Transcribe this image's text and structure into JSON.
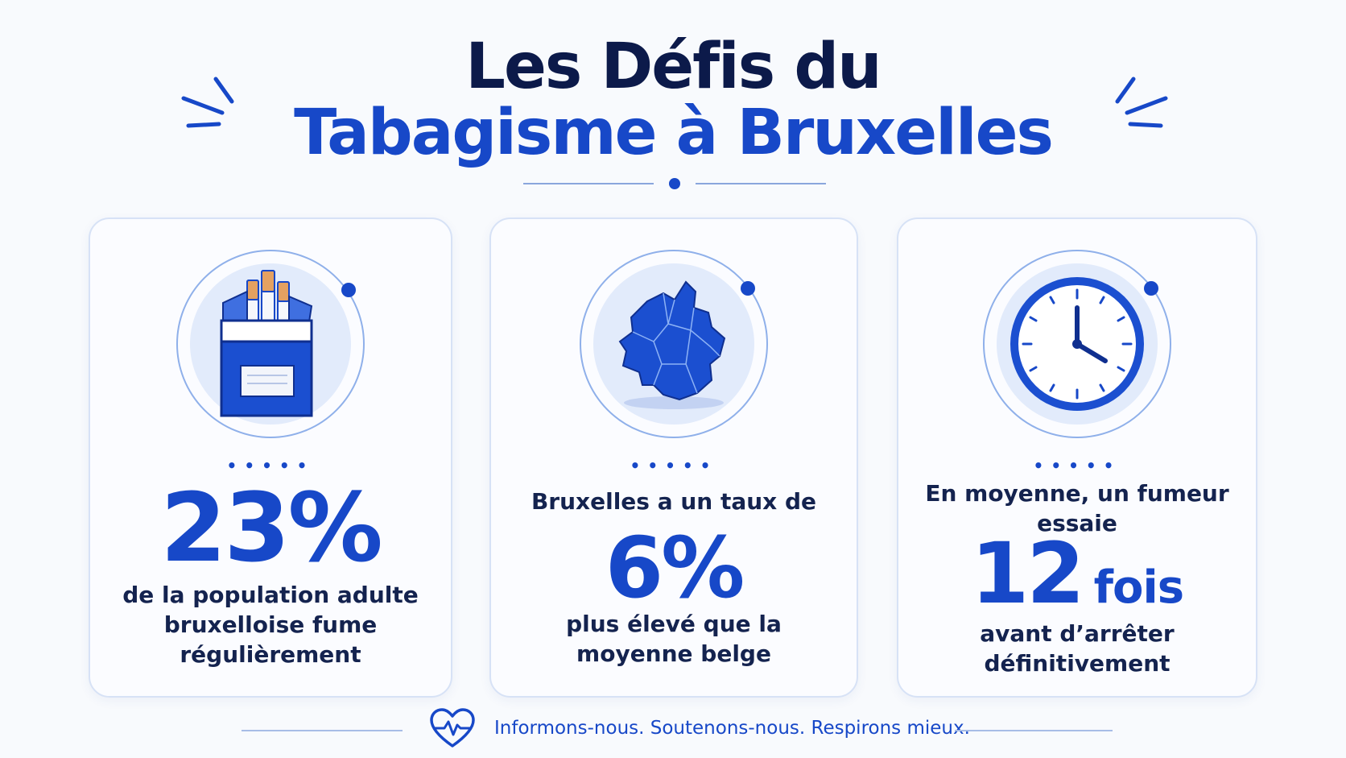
{
  "title": {
    "line1": "Les Défis du",
    "line2": "Tabagisme à Bruxelles"
  },
  "colors": {
    "primary_blue": "#1748c8",
    "navy": "#0c1a4a",
    "card_border": "#d7e2f6",
    "background": "#f8fafd"
  },
  "cards": [
    {
      "icon": "cigarette-pack-icon",
      "dots": "•••••",
      "value": "23%",
      "text_lines": [
        "de la population adulte",
        "bruxelloise fume",
        "régulièrement"
      ]
    },
    {
      "icon": "brussels-map-icon",
      "dots": "•••••",
      "pre_text": "Bruxelles a un taux de",
      "value": "6%",
      "text_lines": [
        "plus élevé que la",
        "moyenne belge"
      ]
    },
    {
      "icon": "clock-icon",
      "dots": "•••••",
      "pre_text_lines": [
        "En moyenne, un fumeur",
        "essaie"
      ],
      "value": "12",
      "unit": "fois",
      "text_lines": [
        "avant d’arrêter",
        "définitivement"
      ]
    }
  ],
  "footer": {
    "icon": "heart-pulse-icon",
    "text": "Informons-nous. Soutenons-nous. Respirons mieux."
  }
}
